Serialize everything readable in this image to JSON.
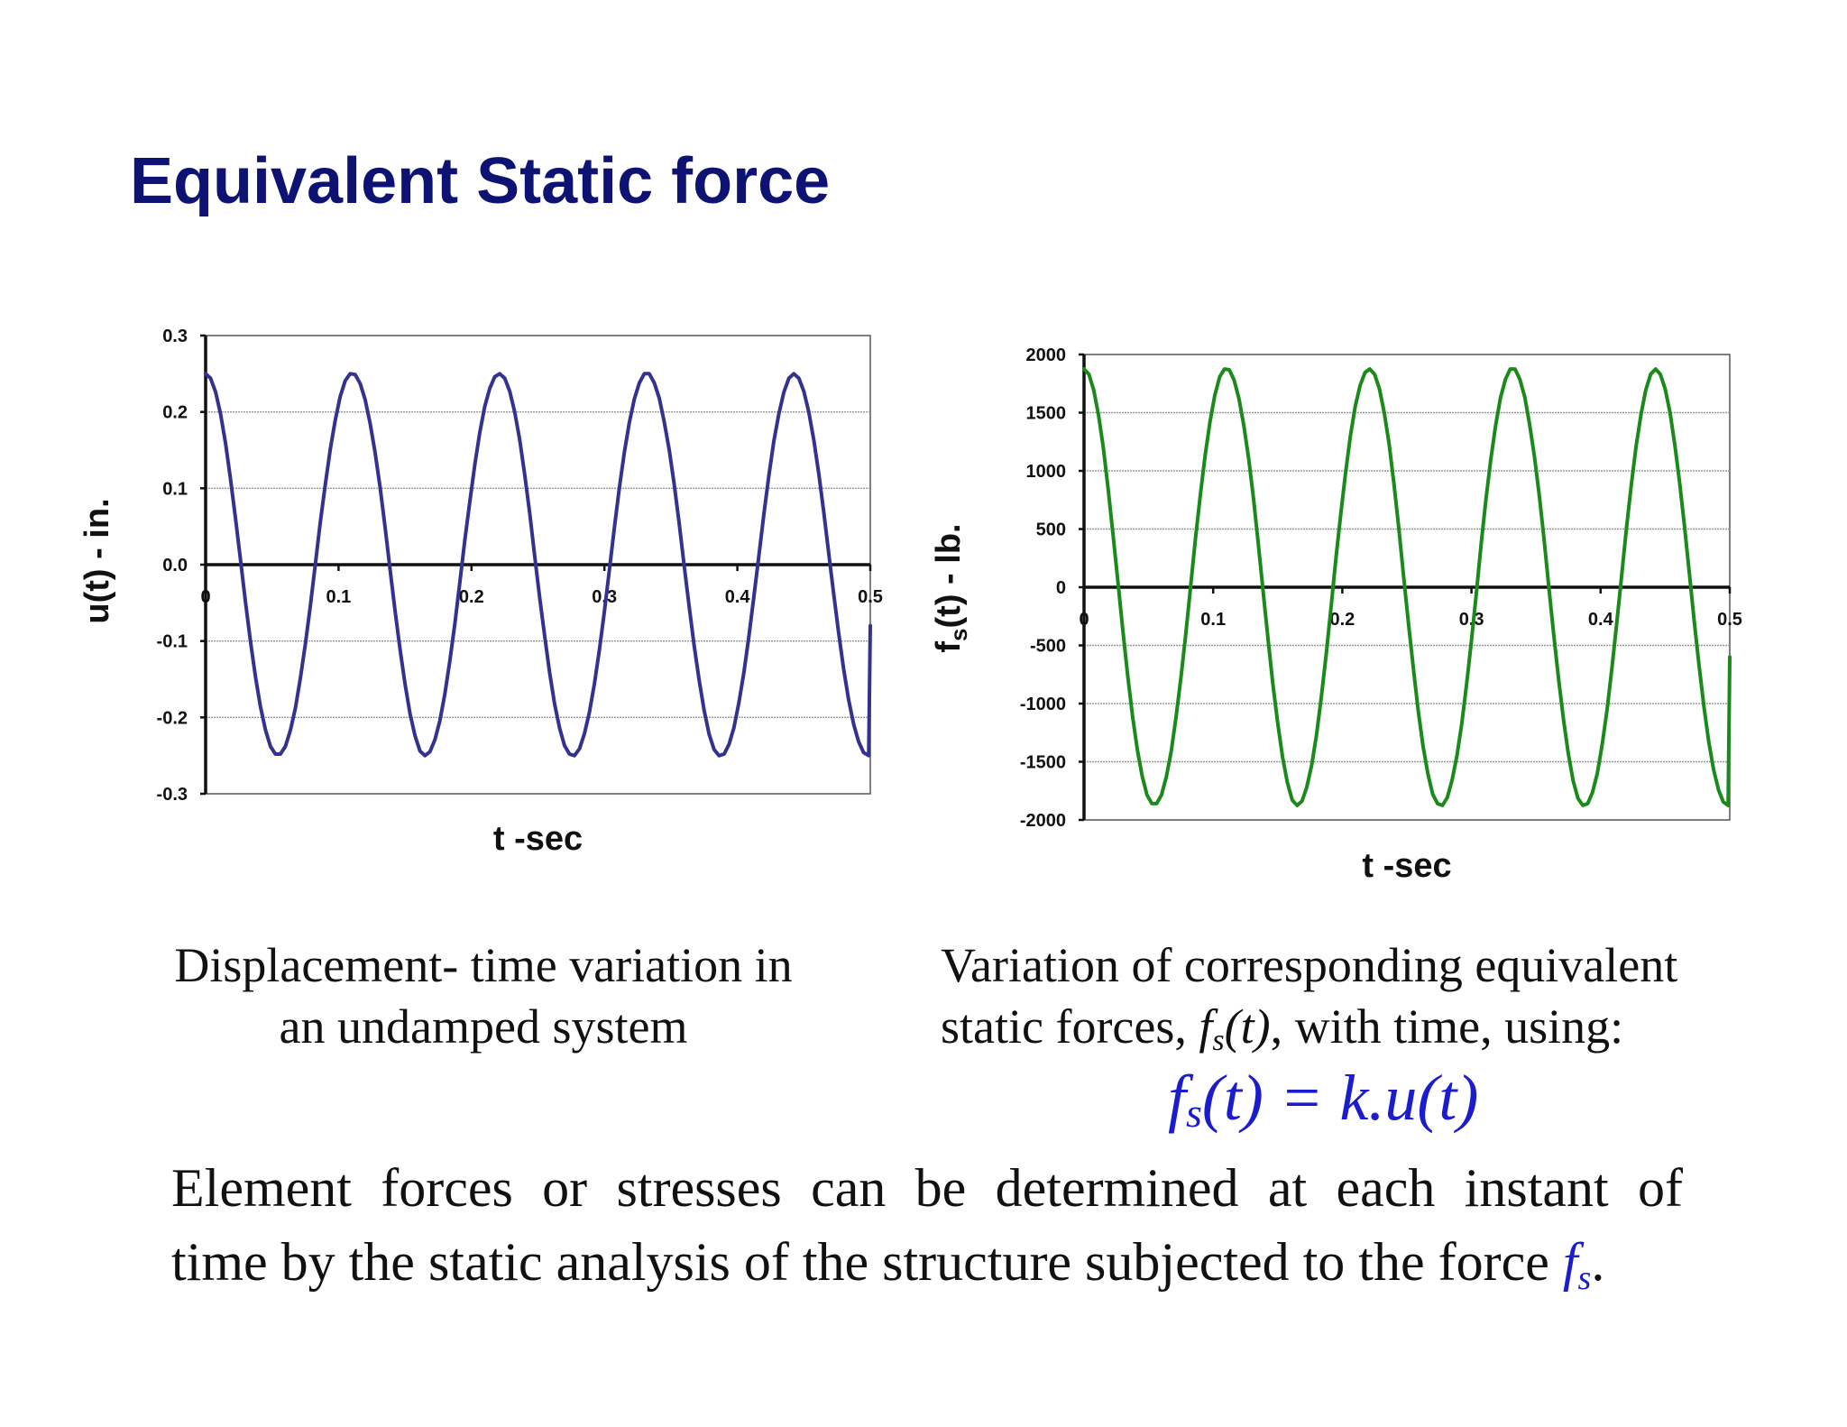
{
  "title": "Equivalent Static force",
  "chart_data": [
    {
      "type": "line",
      "ylabel": "u(t) - in.",
      "xlabel": "t -sec",
      "xlim": [
        0,
        0.5
      ],
      "ylim": [
        -0.3,
        0.3
      ],
      "x_ticks": [
        "0",
        "0.1",
        "0.2",
        "0.3",
        "0.4",
        "0.5"
      ],
      "y_ticks": [
        "0.3",
        "0.2",
        "0.1",
        "0.0",
        "-0.1",
        "-0.2",
        "-0.3"
      ],
      "grid": true,
      "color": "#33338f",
      "series": [
        {
          "x": [
            0,
            0.00375,
            0.0075,
            0.01125,
            0.015,
            0.01875,
            0.0225,
            0.02625,
            0.03,
            0.03375,
            0.0375,
            0.04125,
            0.045,
            0.04875,
            0.0525,
            0.05625,
            0.06,
            0.06375,
            0.0675,
            0.07125,
            0.075,
            0.07875,
            0.0825,
            0.08625,
            0.09,
            0.09375,
            0.0975,
            0.10125,
            0.105,
            0.10875,
            0.1125,
            0.11625,
            0.12,
            0.12375,
            0.1275,
            0.13125,
            0.135,
            0.13875,
            0.1425,
            0.14625,
            0.15,
            0.15375,
            0.1575,
            0.16125,
            0.165,
            0.16875,
            0.1725,
            0.17625,
            0.18,
            0.18375,
            0.1875,
            0.19125,
            0.195,
            0.19875,
            0.2025,
            0.20625,
            0.21,
            0.21375,
            0.2175,
            0.22125,
            0.225,
            0.22875,
            0.2325,
            0.23625,
            0.24,
            0.24375,
            0.2475,
            0.25125,
            0.255,
            0.25875,
            0.2625,
            0.26625,
            0.27,
            0.27375,
            0.2775,
            0.28125,
            0.285,
            0.28875,
            0.2925,
            0.29625,
            0.3,
            0.30375,
            0.3075,
            0.31125,
            0.315,
            0.31875,
            0.3225,
            0.32625,
            0.33,
            0.33375,
            0.3375,
            0.34125,
            0.345,
            0.34875,
            0.3525,
            0.35625,
            0.36,
            0.36375,
            0.3675,
            0.37125,
            0.375,
            0.37875,
            0.3825,
            0.38625,
            0.39,
            0.39375,
            0.3975,
            0.40125,
            0.405,
            0.40875,
            0.4125,
            0.41625,
            0.42,
            0.42375,
            0.4275,
            0.43125,
            0.435,
            0.43875,
            0.4425,
            0.44625,
            0.45,
            0.45375,
            0.4575,
            0.46125,
            0.465,
            0.46875,
            0.4725,
            0.47625,
            0.48,
            0.48375,
            0.4875,
            0.49125,
            0.495,
            0.49875,
            0.5
          ],
          "values": [
            0.25,
            0.244,
            0.226,
            0.197,
            0.159,
            0.112,
            0.06,
            0.006,
            -0.049,
            -0.1,
            -0.147,
            -0.186,
            -0.216,
            -0.238,
            -0.248,
            -0.248,
            -0.238,
            -0.217,
            -0.188,
            -0.149,
            -0.104,
            -0.054,
            -0.0,
            0.055,
            0.105,
            0.151,
            0.189,
            0.22,
            0.241,
            0.25,
            0.249,
            0.237,
            0.216,
            0.185,
            0.147,
            0.101,
            0.049,
            -0.006,
            -0.06,
            -0.111,
            -0.156,
            -0.195,
            -0.224,
            -0.244,
            -0.25,
            -0.245,
            -0.229,
            -0.204,
            -0.169,
            -0.126,
            -0.077,
            -0.023,
            0.032,
            0.083,
            0.131,
            0.173,
            0.207,
            0.231,
            0.246,
            0.25,
            0.244,
            0.227,
            0.2,
            0.164,
            0.118,
            0.068,
            0.012,
            -0.042,
            -0.093,
            -0.141,
            -0.182,
            -0.214,
            -0.237,
            -0.248,
            -0.25,
            -0.241,
            -0.221,
            -0.193,
            -0.156,
            -0.111,
            -0.061,
            -0.007,
            0.049,
            0.101,
            0.147,
            0.186,
            0.217,
            0.238,
            0.25,
            0.25,
            0.238,
            0.218,
            0.187,
            0.15,
            0.105,
            0.054,
            -0.001,
            -0.055,
            -0.106,
            -0.151,
            -0.191,
            -0.222,
            -0.242,
            -0.25,
            -0.248,
            -0.235,
            -0.213,
            -0.18,
            -0.14,
            -0.093,
            -0.041,
            0.013,
            0.067,
            0.117,
            0.162,
            0.198,
            0.226,
            0.244,
            0.25,
            0.244,
            0.227,
            0.2,
            0.163,
            0.119,
            0.069,
            0.015,
            -0.039,
            -0.09,
            -0.137,
            -0.177,
            -0.209,
            -0.232,
            -0.246,
            -0.25,
            -0.08
          ]
        }
      ]
    },
    {
      "type": "line",
      "ylabel": "f",
      "ylabel_sub": "s",
      "ylabel_rest": "(t) - lb.",
      "xlabel": "t -sec",
      "xlim": [
        0,
        0.5
      ],
      "ylim": [
        -2000,
        2000
      ],
      "x_ticks": [
        "0",
        "0.1",
        "0.2",
        "0.3",
        "0.4",
        "0.5"
      ],
      "y_ticks": [
        "2000",
        "1500",
        "1000",
        "500",
        "0",
        "-500",
        "-1000",
        "-1500",
        "-2000"
      ],
      "grid": true,
      "color": "#1b8a1b",
      "series": [
        {
          "x": [
            0,
            0.00375,
            0.0075,
            0.01125,
            0.015,
            0.01875,
            0.0225,
            0.02625,
            0.03,
            0.03375,
            0.0375,
            0.04125,
            0.045,
            0.04875,
            0.0525,
            0.05625,
            0.06,
            0.06375,
            0.0675,
            0.07125,
            0.075,
            0.07875,
            0.0825,
            0.08625,
            0.09,
            0.09375,
            0.0975,
            0.10125,
            0.105,
            0.10875,
            0.1125,
            0.11625,
            0.12,
            0.12375,
            0.1275,
            0.13125,
            0.135,
            0.13875,
            0.1425,
            0.14625,
            0.15,
            0.15375,
            0.1575,
            0.16125,
            0.165,
            0.16875,
            0.1725,
            0.17625,
            0.18,
            0.18375,
            0.1875,
            0.19125,
            0.195,
            0.19875,
            0.2025,
            0.20625,
            0.21,
            0.21375,
            0.2175,
            0.22125,
            0.225,
            0.22875,
            0.2325,
            0.23625,
            0.24,
            0.24375,
            0.2475,
            0.25125,
            0.255,
            0.25875,
            0.2625,
            0.26625,
            0.27,
            0.27375,
            0.2775,
            0.28125,
            0.285,
            0.28875,
            0.2925,
            0.29625,
            0.3,
            0.30375,
            0.3075,
            0.31125,
            0.315,
            0.31875,
            0.3225,
            0.32625,
            0.33,
            0.33375,
            0.3375,
            0.34125,
            0.345,
            0.34875,
            0.3525,
            0.35625,
            0.36,
            0.36375,
            0.3675,
            0.37125,
            0.375,
            0.37875,
            0.3825,
            0.38625,
            0.39,
            0.39375,
            0.3975,
            0.40125,
            0.405,
            0.40875,
            0.4125,
            0.41625,
            0.42,
            0.42375,
            0.4275,
            0.43125,
            0.435,
            0.43875,
            0.4425,
            0.44625,
            0.45,
            0.45375,
            0.4575,
            0.46125,
            0.465,
            0.46875,
            0.4725,
            0.47625,
            0.48,
            0.48375,
            0.4875,
            0.49125,
            0.495,
            0.49875,
            0.5
          ],
          "values": [
            1875,
            1830,
            1695,
            1478,
            1193,
            840,
            450,
            45,
            -368,
            -750,
            -1103,
            -1395,
            -1620,
            -1785,
            -1860,
            -1860,
            -1785,
            -1628,
            -1410,
            -1118,
            -780,
            -405,
            0,
            413,
            788,
            1133,
            1418,
            1650,
            1808,
            1875,
            1868,
            1778,
            1620,
            1388,
            1103,
            758,
            368,
            -45,
            -450,
            -833,
            -1170,
            -1463,
            -1680,
            -1830,
            -1875,
            -1838,
            -1718,
            -1530,
            -1268,
            -945,
            -578,
            -173,
            240,
            623,
            983,
            1298,
            1553,
            1733,
            1845,
            1875,
            1830,
            1703,
            1500,
            1230,
            885,
            510,
            90,
            -315,
            -698,
            -1058,
            -1365,
            -1605,
            -1778,
            -1860,
            -1875,
            -1808,
            -1658,
            -1448,
            -1170,
            -833,
            -458,
            -53,
            368,
            758,
            1103,
            1395,
            1628,
            1785,
            1875,
            1875,
            1785,
            1635,
            1403,
            1125,
            788,
            405,
            -8,
            -413,
            -795,
            -1133,
            -1433,
            -1665,
            -1815,
            -1875,
            -1860,
            -1763,
            -1598,
            -1350,
            -1050,
            -698,
            -308,
            98,
            503,
            878,
            1215,
            1485,
            1695,
            1830,
            1875,
            1830,
            1703,
            1500,
            1223,
            893,
            518,
            113,
            -293,
            -675,
            -1028,
            -1328,
            -1568,
            -1740,
            -1845,
            -1875,
            -600
          ]
        }
      ]
    }
  ],
  "captions": {
    "left": [
      "Displacement- time  variation in",
      "an undamped system"
    ],
    "right_line1": "Variation of  corresponding equivalent",
    "right_line2_a": "static forces, ",
    "right_fs_f": "f",
    "right_fs_sub": "s",
    "right_fs_t": "(t)",
    "right_line2_b": ",  with time, using:"
  },
  "formula": {
    "f": "f",
    "sub": "s",
    "rest": "(t) = k.u(t)"
  },
  "bottom": {
    "line1": "Element forces or stresses can be determined at each instant of",
    "line2": "time by the static analysis of the structure subjected to the force ",
    "fs_f": "f",
    "fs_sub": "s",
    "period": "."
  }
}
